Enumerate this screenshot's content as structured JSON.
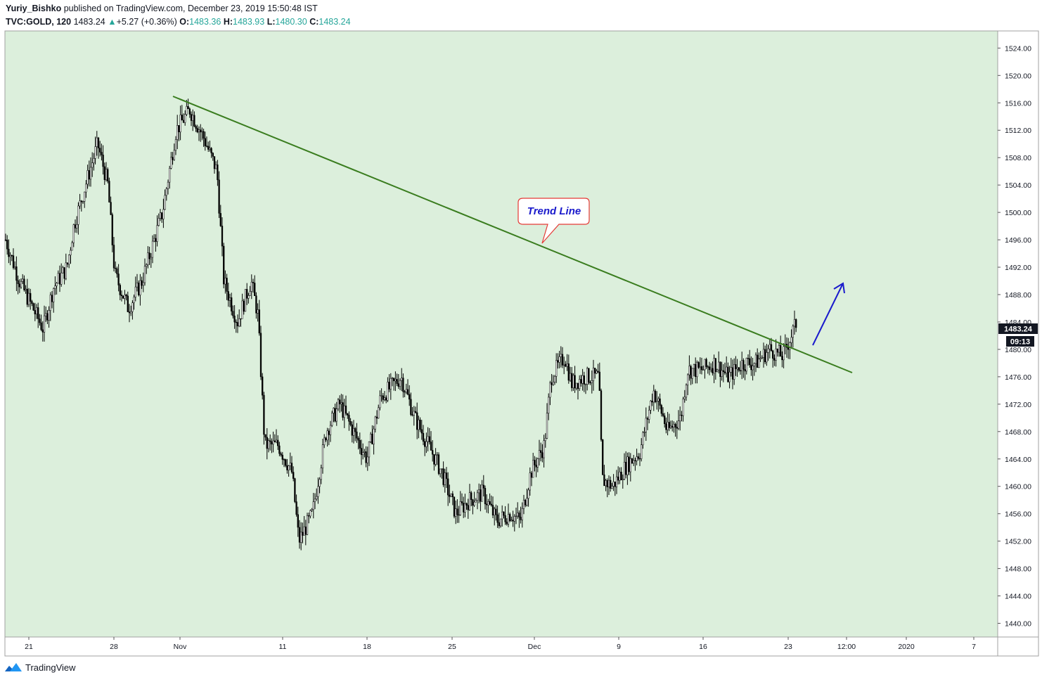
{
  "header": {
    "author": "Yuriy_Bishko",
    "published_text": "published on TradingView.com, December 23, 2019 15:50:48 IST",
    "symbol": "TVC:GOLD, 120",
    "last": "1483.24",
    "change_arrow": "▲",
    "change": "+5.27 (+0.36%)",
    "o_label": "O:",
    "o": "1483.36",
    "h_label": "H:",
    "h": "1483.93",
    "l_label": "L:",
    "l": "1480.30",
    "c_label": "C:",
    "c": "1483.24"
  },
  "annotation": {
    "text": "Trend Line"
  },
  "price_label": "1483.24",
  "countdown": "09:13",
  "footer": {
    "brand": "TradingView",
    "logo_icon": "tradingview-logo-icon"
  },
  "colors": {
    "chart_bg": "#dcefdc",
    "candle": "#000000",
    "trend_line": "#3a7d1f",
    "callout_border": "#e53935",
    "callout_text": "#1a1acc",
    "arrow": "#1a1acc",
    "up": "#26a69a"
  },
  "chart_data": {
    "type": "candlestick",
    "timeframe": "120",
    "x_ticks": [
      "21",
      "28",
      "Nov",
      "11",
      "18",
      "25",
      "Dec",
      "9",
      "16",
      "23",
      "12:00",
      "2020",
      "7"
    ],
    "y_ticks": [
      "1524.00",
      "1520.00",
      "1516.00",
      "1512.00",
      "1508.00",
      "1504.00",
      "1500.00",
      "1496.00",
      "1492.00",
      "1488.00",
      "1484.00",
      "1480.00",
      "1476.00",
      "1472.00",
      "1468.00",
      "1464.00",
      "1460.00",
      "1456.00",
      "1452.00",
      "1448.00",
      "1444.00",
      "1440.00"
    ],
    "ylim": [
      1438.0,
      1526.5
    ],
    "grid": false,
    "approx_close_path": [
      [
        0,
        1496
      ],
      [
        0.02,
        1490
      ],
      [
        0.04,
        1486
      ],
      [
        0.055,
        1483
      ],
      [
        0.07,
        1489
      ],
      [
        0.09,
        1492
      ],
      [
        0.1,
        1498
      ],
      [
        0.12,
        1505
      ],
      [
        0.135,
        1510
      ],
      [
        0.15,
        1504
      ],
      [
        0.16,
        1491
      ],
      [
        0.18,
        1486
      ],
      [
        0.2,
        1490
      ],
      [
        0.23,
        1500
      ],
      [
        0.25,
        1512
      ],
      [
        0.27,
        1515
      ],
      [
        0.29,
        1511
      ],
      [
        0.31,
        1506
      ],
      [
        0.32,
        1490
      ],
      [
        0.34,
        1484
      ],
      [
        0.36,
        1490
      ],
      [
        0.37,
        1485
      ],
      [
        0.38,
        1466
      ],
      [
        0.4,
        1466
      ],
      [
        0.42,
        1462
      ],
      [
        0.43,
        1452
      ],
      [
        0.45,
        1456
      ],
      [
        0.47,
        1468
      ],
      [
        0.49,
        1472
      ],
      [
        0.51,
        1468
      ],
      [
        0.53,
        1464
      ],
      [
        0.55,
        1473
      ],
      [
        0.58,
        1476
      ],
      [
        0.6,
        1470
      ],
      [
        0.62,
        1466
      ],
      [
        0.64,
        1462
      ],
      [
        0.66,
        1456
      ],
      [
        0.68,
        1458
      ],
      [
        0.7,
        1459
      ],
      [
        0.72,
        1455
      ],
      [
        0.74,
        1456
      ],
      [
        0.755,
        1455
      ],
      [
        0.77,
        1462
      ],
      [
        0.79,
        1466
      ],
      [
        0.8,
        1476
      ],
      [
        0.82,
        1479
      ],
      [
        0.83,
        1475
      ],
      [
        0.85,
        1476
      ],
      [
        0.87,
        1476
      ],
      [
        0.875,
        1461
      ],
      [
        0.89,
        1460
      ],
      [
        0.91,
        1463
      ],
      [
        0.93,
        1465
      ],
      [
        0.95,
        1474
      ],
      [
        0.965,
        1470
      ],
      [
        0.97,
        1468
      ],
      [
        0.99,
        1470
      ],
      [
        1.0,
        1477
      ],
      [
        1.02,
        1477
      ],
      [
        1.04,
        1478
      ],
      [
        1.06,
        1476
      ],
      [
        1.08,
        1478
      ],
      [
        1.1,
        1478
      ],
      [
        1.12,
        1480
      ],
      [
        1.14,
        1479
      ],
      [
        1.16,
        1484
      ]
    ],
    "drawings": {
      "trend_line": {
        "from": [
          "Oct 31",
          1517.2
        ],
        "to": [
          "Dec 24 night",
          1477.2
        ]
      },
      "callout_label": "Trend Line",
      "arrow": {
        "from": [
          "Dec 24",
          1481
        ],
        "to": [
          "Dec 26",
          1490
        ]
      }
    },
    "last_price": 1483.24
  }
}
